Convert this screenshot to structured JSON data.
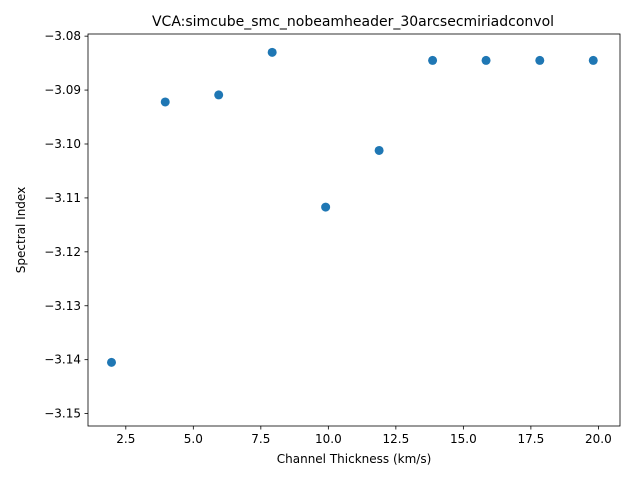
{
  "chart_data": {
    "type": "scatter",
    "title": "VCA:simcube_smc_nobeamheader_30arcsecmiriadconvol",
    "xlabel": "Channel Thickness (km/s)",
    "ylabel": "Spectral Index",
    "xlim": [
      1.1,
      20.8
    ],
    "ylim": [
      -3.1523,
      -3.0796
    ],
    "grid": false,
    "x_ticks": [
      2.5,
      5.0,
      7.5,
      10.0,
      12.5,
      15.0,
      17.5,
      20.0
    ],
    "x_tick_labels": [
      "2.5",
      "5.0",
      "7.5",
      "10.0",
      "12.5",
      "15.0",
      "17.5",
      "20.0"
    ],
    "y_ticks": [
      -3.08,
      -3.09,
      -3.1,
      -3.11,
      -3.12,
      -3.13,
      -3.14,
      -3.15
    ],
    "y_tick_labels": [
      "−3.08",
      "−3.09",
      "−3.10",
      "−3.11",
      "−3.12",
      "−3.13",
      "−3.14",
      "−3.15"
    ],
    "x": [
      1.97,
      3.96,
      5.94,
      7.92,
      9.9,
      11.88,
      13.86,
      15.84,
      17.83,
      19.81
    ],
    "y": [
      -3.1405,
      -3.0922,
      -3.0909,
      -3.083,
      -3.1117,
      -3.1012,
      -3.0845,
      -3.0845,
      -3.0845,
      -3.0845
    ],
    "marker_color": "#1f77b4"
  }
}
